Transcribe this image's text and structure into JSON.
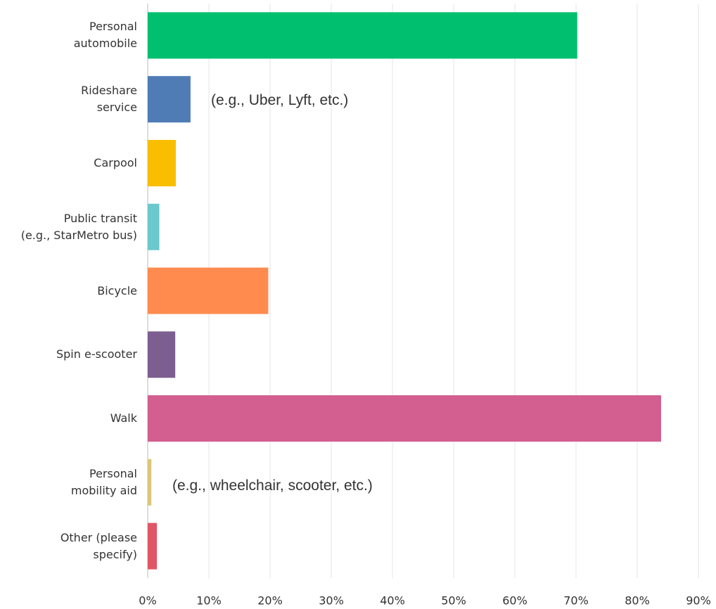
{
  "chart_data": {
    "type": "bar",
    "orientation": "horizontal",
    "categories": [
      "Personal\nautomobile",
      "Rideshare\nservice",
      "Carpool",
      "Public transit\n(e.g., StarMetro bus)",
      "Bicycle",
      "Spin e-scooter",
      "Walk",
      "Personal\nmobility aid",
      "Other (please\nspecify)"
    ],
    "values": [
      70.2,
      7.0,
      4.6,
      1.9,
      19.7,
      4.5,
      83.9,
      0.6,
      1.5
    ],
    "colors": [
      "#00bf6f",
      "#507cb6",
      "#f9be00",
      "#6bc8cd",
      "#ff8b4f",
      "#7d5e90",
      "#d25f90",
      "#dbc67a",
      "#e05666"
    ],
    "annotations": [
      "(e.g., Uber, Lyft, etc.)",
      "(e.g., wheelchair, scooter, etc.)"
    ],
    "xlim": [
      0,
      90
    ],
    "xticks": [
      {
        "value": 0,
        "label": "0%"
      },
      {
        "value": 10,
        "label": "10%"
      },
      {
        "value": 20,
        "label": "20%"
      },
      {
        "value": 30,
        "label": "30%"
      },
      {
        "value": 40,
        "label": "40%"
      },
      {
        "value": 50,
        "label": "50%"
      },
      {
        "value": 60,
        "label": "60%"
      },
      {
        "value": 70,
        "label": "70%"
      },
      {
        "value": 80,
        "label": "80%"
      },
      {
        "value": 90,
        "label": "90%"
      }
    ],
    "grid": true
  }
}
